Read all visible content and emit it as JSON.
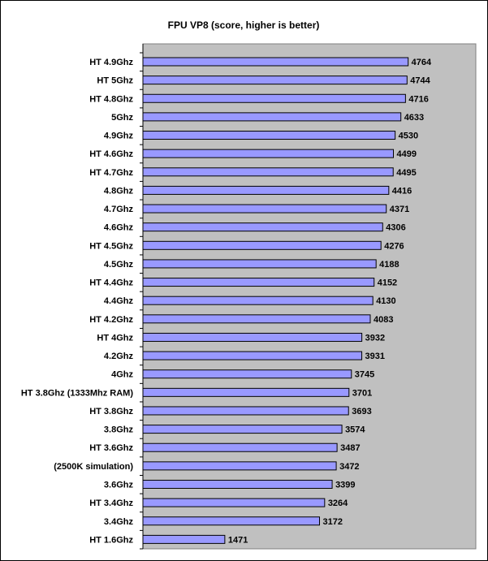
{
  "chart_data": {
    "type": "bar",
    "orientation": "horizontal",
    "title": "FPU VP8 (score, higher is better)",
    "xlabel": "",
    "ylabel": "",
    "xlim": [
      0,
      5000
    ],
    "grid": false,
    "legend": "none",
    "categories": [
      "HT 4.9Ghz",
      "HT 5Ghz",
      "HT 4.8Ghz",
      "5Ghz",
      "4.9Ghz",
      "HT 4.6Ghz",
      "HT 4.7Ghz",
      "4.8Ghz",
      "4.7Ghz",
      "4.6Ghz",
      "HT 4.5Ghz",
      "4.5Ghz",
      "HT 4.4Ghz",
      "4.4Ghz",
      "HT 4.2Ghz",
      "HT 4Ghz",
      "4.2Ghz",
      "4Ghz",
      "HT 3.8Ghz (1333Mhz RAM)",
      "HT 3.8Ghz",
      "3.8Ghz",
      "HT 3.6Ghz",
      "(2500K simulation)",
      "3.6Ghz",
      "HT 3.4Ghz",
      "3.4Ghz",
      "HT 1.6Ghz"
    ],
    "values": [
      4764,
      4744,
      4716,
      4633,
      4530,
      4499,
      4495,
      4416,
      4371,
      4306,
      4276,
      4188,
      4152,
      4130,
      4083,
      3932,
      3931,
      3745,
      3701,
      3693,
      3574,
      3487,
      3472,
      3399,
      3264,
      3172,
      1471
    ],
    "colors": {
      "bar_fill": "#9999ff",
      "bar_stroke": "#000000",
      "plot_background": "#c0c0c0",
      "page_background": "#ffffff"
    }
  }
}
